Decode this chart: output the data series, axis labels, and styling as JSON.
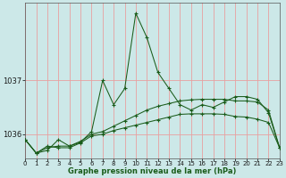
{
  "xlabel": "Graphe pression niveau de la mer (hPa)",
  "bg_color": "#cce8e8",
  "plot_bg_color": "#cce8e8",
  "grid_color": "#e8a0a0",
  "line_color": "#1a5c1a",
  "marker_color": "#1a5c1a",
  "yticks": [
    1036,
    1037
  ],
  "ylim": [
    1035.55,
    1038.45
  ],
  "xlim": [
    0,
    23
  ],
  "xticks": [
    0,
    1,
    2,
    3,
    4,
    5,
    6,
    7,
    8,
    9,
    10,
    11,
    12,
    13,
    14,
    15,
    16,
    17,
    18,
    19,
    20,
    21,
    22,
    23
  ],
  "curves": [
    [
      1035.9,
      1035.65,
      1035.7,
      1035.9,
      1035.78,
      1035.85,
      1036.05,
      1037.0,
      1036.55,
      1036.85,
      1038.25,
      1037.8,
      1037.15,
      1036.85,
      1036.55,
      1036.45,
      1036.55,
      1036.5,
      1036.6,
      1036.7,
      1036.7,
      1036.65,
      1036.4,
      1035.75
    ],
    [
      1035.9,
      1035.65,
      1035.75,
      1035.78,
      1035.78,
      1035.87,
      1036.0,
      1036.05,
      1036.15,
      1036.25,
      1036.35,
      1036.45,
      1036.52,
      1036.57,
      1036.62,
      1036.64,
      1036.65,
      1036.65,
      1036.65,
      1036.62,
      1036.62,
      1036.6,
      1036.45,
      1035.75
    ],
    [
      1035.9,
      1035.65,
      1035.78,
      1035.75,
      1035.75,
      1035.84,
      1035.97,
      1036.0,
      1036.07,
      1036.12,
      1036.17,
      1036.22,
      1036.27,
      1036.32,
      1036.37,
      1036.38,
      1036.38,
      1036.38,
      1036.37,
      1036.33,
      1036.32,
      1036.28,
      1036.22,
      1035.75
    ]
  ],
  "tick_fontsize": 5,
  "xlabel_fontsize": 6
}
